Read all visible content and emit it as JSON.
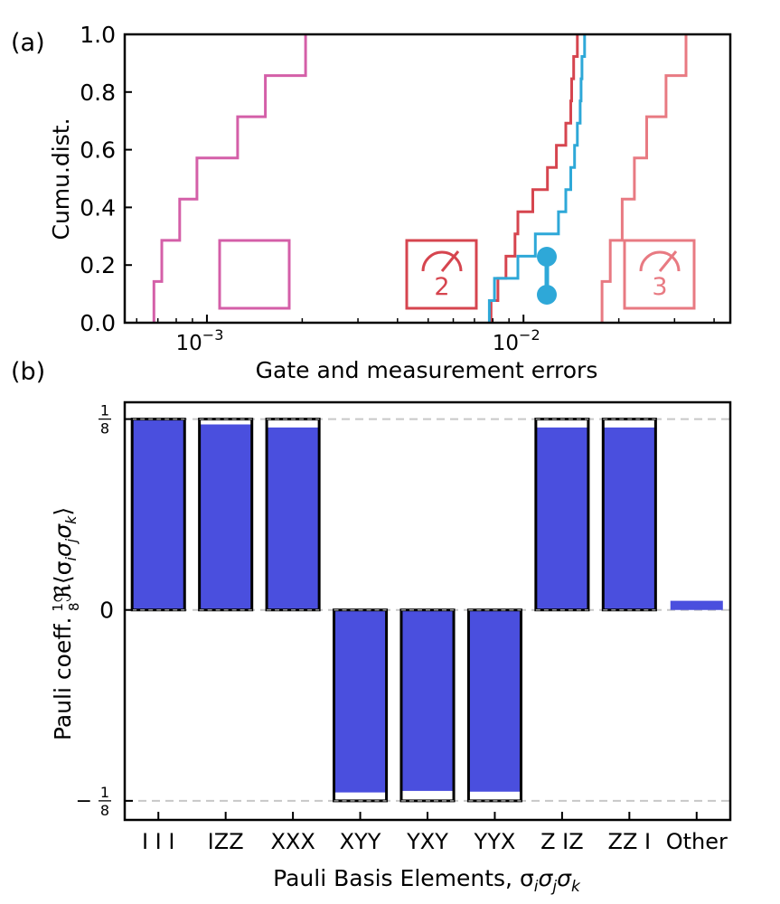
{
  "panel_labels": {
    "a": "(a)",
    "b": "(b)"
  },
  "chart_data": [
    {
      "type": "line",
      "subtype": "cumulative-distribution-step",
      "xscale": "log",
      "xlim": [
        0.00055,
        0.045
      ],
      "ylim": [
        0,
        1
      ],
      "xlabel": "Gate and measurement errors",
      "ylabel": "Cumu.dist.",
      "yticks": [
        "0.0",
        "0.2",
        "0.4",
        "0.6",
        "0.8",
        "1.0"
      ],
      "xticks": [
        {
          "value": 0.001,
          "base": "10",
          "exp": "−3"
        },
        {
          "value": 0.01,
          "base": "10",
          "exp": "−2"
        }
      ],
      "icons": {
        "meas2_label": "2",
        "meas3_label": "3"
      },
      "series": [
        {
          "color": "#d45fa8",
          "icon": "single-qubit-gate-icon",
          "values": [
            0.00068,
            0.00072,
            0.00082,
            0.00093,
            0.00125,
            0.00153,
            0.00205
          ]
        },
        {
          "color": "#d6454f",
          "icon": "two-qubit-measurement-icon",
          "values": [
            0.0079,
            0.0083,
            0.0088,
            0.0094,
            0.0096,
            0.0107,
            0.0119,
            0.0127,
            0.0136,
            0.0141,
            0.0142,
            0.0144,
            0.0148
          ]
        },
        {
          "color": "#2ea8d8",
          "icon": "two-qubit-gate-icon",
          "values": [
            0.0078,
            0.0081,
            0.0096,
            0.0109,
            0.0129,
            0.0136,
            0.0141,
            0.0145,
            0.0148,
            0.0151,
            0.0152,
            0.0153,
            0.0156
          ]
        },
        {
          "color": "#e87a82",
          "icon": "three-qubit-measurement-icon",
          "values": [
            0.0177,
            0.0188,
            0.0205,
            0.0224,
            0.0245,
            0.0282,
            0.0326
          ]
        }
      ]
    },
    {
      "type": "bar",
      "categories": [
        "I I I",
        "IZZ",
        "XXX",
        "XYY",
        "YXY",
        "YYX",
        "Z IZ",
        "ZZ I",
        "Other"
      ],
      "ideal": [
        0.125,
        0.125,
        0.125,
        -0.125,
        -0.125,
        -0.125,
        0.125,
        0.125,
        0
      ],
      "values": [
        0.125,
        0.1215,
        0.1195,
        -0.1195,
        -0.1185,
        -0.119,
        0.1195,
        0.1195,
        0.006
      ],
      "ylim": [
        -0.1375,
        0.136
      ],
      "yticks": [
        {
          "value": 0.125,
          "num": "1",
          "den": "8",
          "sign": ""
        },
        {
          "value": 0,
          "plain": "0"
        },
        {
          "value": -0.125,
          "num": "1",
          "den": "8",
          "sign": "−"
        }
      ],
      "xlabel": "Pauli Basis Elements, σ",
      "xlabel_subs": [
        "i",
        "j",
        "k"
      ],
      "ylabel": "Pauli coeff.",
      "ylabel_math": "ℜ⟨σ",
      "bar_color": "#4a4fde",
      "ideal_outline_color": "#000000",
      "reference_line_color": "#c8c8c8",
      "grid": false
    }
  ]
}
